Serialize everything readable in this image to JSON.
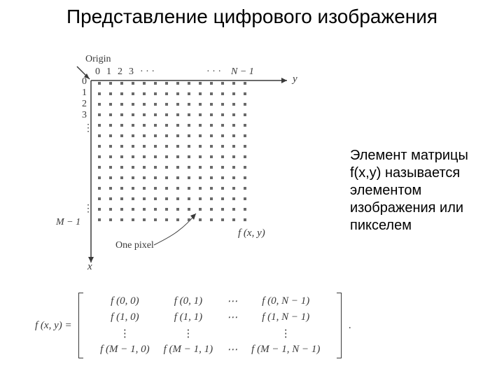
{
  "title": "Представление цифрового изображения",
  "caption": "Элемент матрицы f(x,y) называется элементом изображения или пикселем",
  "figure": {
    "origin_label": "Origin",
    "one_pixel_label": "One pixel",
    "f_label": "f (x, y)",
    "x_label": "x",
    "y_label": "y",
    "y_ticks": [
      "0",
      "1",
      "2",
      "3",
      "· · ·",
      "· · ·",
      "N − 1"
    ],
    "x_ticks": [
      "0",
      "1",
      "2",
      "3",
      "⋮",
      "⋮",
      "M − 1"
    ],
    "grid": {
      "cols": 14,
      "rows": 14,
      "dot_color": "#6a6a6a",
      "dot_radius": 2
    },
    "axis_color": "#3a3a3a"
  },
  "matrix": {
    "lhs": "f (x, y)  =",
    "rows": [
      [
        "f (0, 0)",
        "f (0, 1)",
        "⋯",
        "f (0, N − 1)"
      ],
      [
        "f (1, 0)",
        "f (1, 1)",
        "⋯",
        "f (1, N − 1)"
      ],
      [
        "⋮",
        "⋮",
        "",
        "⋮"
      ],
      [
        "f (M − 1, 0)",
        "f (M − 1, 1)",
        "⋯",
        "f (M − 1, N − 1)"
      ]
    ],
    "trailing": "."
  }
}
